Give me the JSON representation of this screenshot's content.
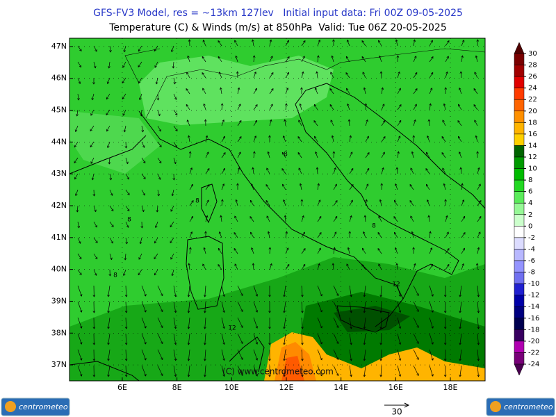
{
  "title": "GFS-FV3 Model, res = ~13km 127lev   Initial input data: Fri 00Z 09-05-2025",
  "subtitle": "Temperature (C) & Winds (m/s) at 850hPa  Valid: Tue 06Z 20-05-2025",
  "map": {
    "xlim": [
      4.07,
      19.27
    ],
    "ylim": [
      36.5,
      47.26
    ],
    "xticks": [
      {
        "value": 6,
        "label": "6E"
      },
      {
        "value": 8,
        "label": "8E"
      },
      {
        "value": 10,
        "label": "10E"
      },
      {
        "value": 12,
        "label": "12E"
      },
      {
        "value": 14,
        "label": "14E"
      },
      {
        "value": 16,
        "label": "16E"
      },
      {
        "value": 18,
        "label": "18E"
      }
    ],
    "yticks": [
      {
        "value": 37,
        "label": "37N"
      },
      {
        "value": 38,
        "label": "38N"
      },
      {
        "value": 39,
        "label": "39N"
      },
      {
        "value": 40,
        "label": "40N"
      },
      {
        "value": 41,
        "label": "41N"
      },
      {
        "value": 42,
        "label": "42N"
      },
      {
        "value": 43,
        "label": "43N"
      },
      {
        "value": 44,
        "label": "44N"
      },
      {
        "value": 45,
        "label": "45N"
      },
      {
        "value": 46,
        "label": "46N"
      },
      {
        "value": 47,
        "label": "47N"
      }
    ],
    "contour_labels": [
      "8",
      "8",
      "8",
      "8",
      "8",
      "12",
      "12"
    ],
    "watermark": "(C) www.centrometeo.com"
  },
  "colorbar": {
    "levels": [
      30,
      28,
      26,
      24,
      22,
      20,
      18,
      16,
      14,
      12,
      10,
      8,
      6,
      4,
      2,
      0,
      -2,
      -4,
      -6,
      -8,
      -10,
      -12,
      -14,
      -16,
      -18,
      -20,
      -22,
      -24
    ],
    "colors": [
      "#7a0000",
      "#a00000",
      "#e00000",
      "#ff3c00",
      "#ff6400",
      "#ff9000",
      "#ffb400",
      "#ffd000",
      "#006400",
      "#009a00",
      "#00bb00",
      "#22d822",
      "#5aeb5a",
      "#96f896",
      "#ccffcc",
      "#ffffff",
      "#dcdcff",
      "#b8b8ff",
      "#9494ff",
      "#7070f0",
      "#2020d0",
      "#0000a8",
      "#000080",
      "#000050",
      "#380060",
      "#b000b0",
      "#780078"
    ],
    "over_color": "#500000",
    "under_color": "#4a0050"
  },
  "reference_vector": 30,
  "logos": [
    "centrometeo",
    "centrometeo"
  ]
}
